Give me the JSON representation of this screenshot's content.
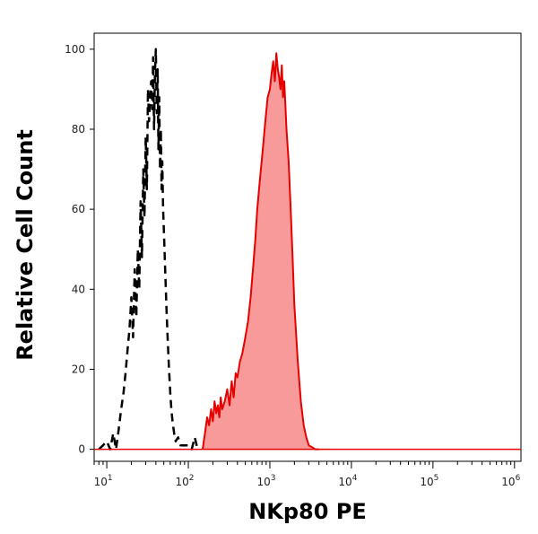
{
  "chart_data": {
    "type": "histogram",
    "xlabel": "NKp80 PE",
    "ylabel": "Relative Cell Count",
    "x_scale": "log",
    "xlim": [
      7,
      1200000
    ],
    "ylim": [
      -3,
      104
    ],
    "grid": false,
    "y_ticks": [
      {
        "value": 0,
        "label": "0"
      },
      {
        "value": 20,
        "label": "20"
      },
      {
        "value": 40,
        "label": "40"
      },
      {
        "value": 60,
        "label": "60"
      },
      {
        "value": 80,
        "label": "80"
      },
      {
        "value": 100,
        "label": "100"
      }
    ],
    "x_ticks": [
      {
        "value": 10,
        "base": "10",
        "exp": "1"
      },
      {
        "value": 100,
        "base": "10",
        "exp": "2"
      },
      {
        "value": 1000,
        "base": "10",
        "exp": "3"
      },
      {
        "value": 10000,
        "base": "10",
        "exp": "4"
      },
      {
        "value": 100000,
        "base": "10",
        "exp": "5"
      },
      {
        "value": 1000000,
        "base": "10",
        "exp": "6"
      }
    ],
    "series": [
      {
        "style": "dashed",
        "color": "#000000",
        "fill": "none",
        "x": [
          8,
          9,
          10,
          11,
          12,
          13,
          14,
          15,
          16,
          17,
          18,
          19,
          20,
          21,
          22,
          23,
          24,
          25,
          26,
          27,
          28,
          29,
          30,
          31,
          32,
          33,
          34,
          35,
          36,
          37,
          38,
          39,
          40,
          41,
          42,
          43,
          44,
          45,
          46,
          47,
          48,
          49,
          50,
          52,
          54,
          56,
          58,
          60,
          62,
          64,
          66,
          68,
          70,
          75,
          80,
          90,
          100,
          110,
          120,
          130
        ],
        "y": [
          0,
          1,
          2,
          0,
          4,
          0,
          5,
          10,
          14,
          19,
          25,
          30,
          38,
          28,
          45,
          33,
          50,
          40,
          62,
          48,
          70,
          58,
          78,
          65,
          90,
          82,
          88,
          92,
          85,
          98,
          80,
          94,
          100,
          84,
          95,
          75,
          88,
          70,
          80,
          65,
          72,
          60,
          55,
          45,
          35,
          27,
          20,
          14,
          10,
          7,
          5,
          3,
          2,
          3,
          1,
          1,
          1,
          0,
          3,
          0
        ]
      },
      {
        "style": "solid",
        "color": "#e60000",
        "fill": "#f99a9a",
        "x": [
          150,
          160,
          170,
          180,
          190,
          200,
          210,
          220,
          230,
          240,
          250,
          260,
          280,
          300,
          320,
          340,
          360,
          380,
          400,
          430,
          460,
          500,
          540,
          580,
          620,
          660,
          700,
          760,
          820,
          880,
          940,
          1000,
          1050,
          1100,
          1150,
          1200,
          1250,
          1300,
          1350,
          1400,
          1450,
          1500,
          1550,
          1600,
          1700,
          1800,
          1900,
          2000,
          2200,
          2400,
          2600,
          2800,
          3000,
          3300,
          3600,
          4000
        ],
        "y": [
          0,
          4,
          8,
          6,
          10,
          7,
          12,
          9,
          11,
          8,
          13,
          10,
          12,
          15,
          11,
          17,
          13,
          19,
          18,
          22,
          24,
          28,
          32,
          38,
          45,
          52,
          60,
          68,
          75,
          82,
          88,
          90,
          94,
          97,
          92,
          99,
          95,
          93,
          90,
          96,
          88,
          92,
          86,
          80,
          72,
          60,
          48,
          36,
          22,
          12,
          6,
          3,
          1,
          0.5,
          0,
          0
        ]
      }
    ]
  }
}
